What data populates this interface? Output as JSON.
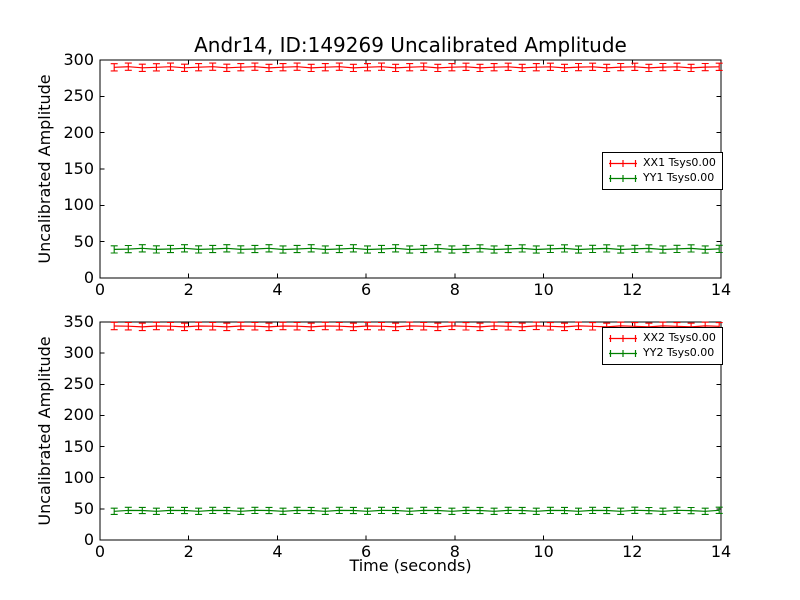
{
  "title": "Andr14, ID:149269 Uncalibrated Amplitude",
  "colors": {
    "xx_polarization": "#ff0000",
    "yy_polarization": "#008000",
    "axes": "#000000",
    "background": "#ffffff"
  },
  "chart_data": [
    {
      "type": "line",
      "name": "subplot-1",
      "ylabel": "Uncalibrated Amplitude",
      "xlabel": "",
      "xlim": [
        0,
        14
      ],
      "ylim": [
        0,
        300
      ],
      "xticks": [
        0,
        2,
        4,
        6,
        8,
        10,
        12,
        14
      ],
      "yticks": [
        0,
        50,
        100,
        150,
        200,
        250,
        300
      ],
      "grid": false,
      "marker_style": "errorbar",
      "x_start": 0.32,
      "x_end": 13.96,
      "n_points": 44,
      "series": [
        {
          "name": "XX1 Tsys0.00",
          "color": "#ff0000",
          "y_mean": 290,
          "y_err": 5
        },
        {
          "name": "YY1 Tsys0.00",
          "color": "#008000",
          "y_mean": 40,
          "y_err": 5
        }
      ],
      "legend": {
        "location": "center right",
        "entries": [
          "XX1 Tsys0.00",
          "YY1 Tsys0.00"
        ]
      }
    },
    {
      "type": "line",
      "name": "subplot-2",
      "ylabel": "Uncalibrated Amplitude",
      "xlabel": "Time (seconds)",
      "xlim": [
        0,
        14
      ],
      "ylim": [
        0,
        350
      ],
      "xticks": [
        0,
        2,
        4,
        6,
        8,
        10,
        12,
        14
      ],
      "yticks": [
        0,
        50,
        100,
        150,
        200,
        250,
        300,
        350
      ],
      "grid": false,
      "marker_style": "errorbar",
      "x_start": 0.32,
      "x_end": 13.96,
      "n_points": 44,
      "series": [
        {
          "name": "XX2 Tsys0.00",
          "color": "#ff0000",
          "y_mean": 343,
          "y_err": 6
        },
        {
          "name": "YY2 Tsys0.00",
          "color": "#008000",
          "y_mean": 47,
          "y_err": 5
        }
      ],
      "legend": {
        "location": "upper right",
        "entries": [
          "XX2 Tsys0.00",
          "YY2 Tsys0.00"
        ]
      }
    }
  ]
}
